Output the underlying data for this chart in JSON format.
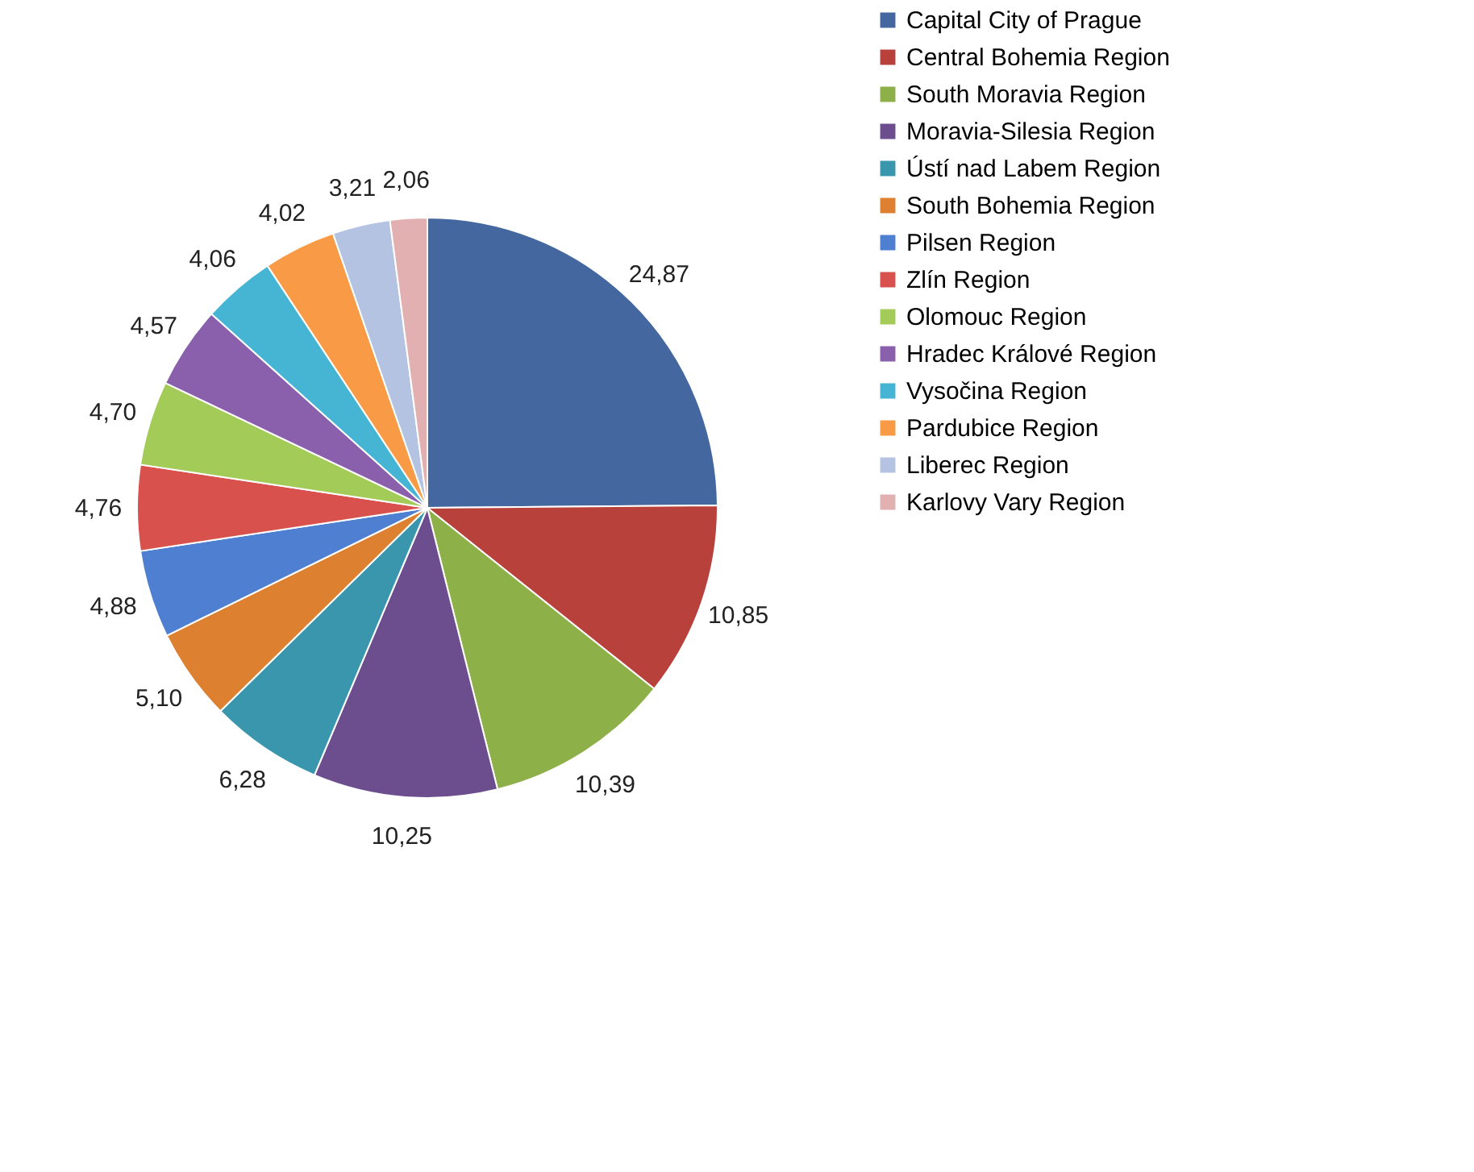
{
  "chart_data": {
    "type": "pie",
    "categories": [
      "Capital City of Prague",
      "Central Bohemia Region",
      "South Moravia Region",
      "Moravia-Silesia Region",
      "Ústí nad Labem Region",
      "South Bohemia Region",
      "Pilsen Region",
      "Zlín Region",
      "Olomouc Region",
      "Hradec Králové Region",
      "Vysočina Region",
      "Pardubice Region",
      "Liberec Region",
      "Karlovy Vary Region"
    ],
    "values": [
      24.87,
      10.85,
      10.39,
      10.25,
      6.28,
      5.1,
      4.88,
      4.76,
      4.7,
      4.57,
      4.06,
      4.02,
      3.21,
      2.06
    ],
    "value_labels": [
      "24,87",
      "10,85",
      "10,39",
      "10,25",
      "6,28",
      "5,10",
      "4,88",
      "4,76",
      "4,70",
      "4,57",
      "4,06",
      "4,02",
      "3,21",
      "2,06"
    ],
    "colors": [
      "#44679f",
      "#b8413c",
      "#8eb049",
      "#6c4e8e",
      "#3a96ad",
      "#dd8030",
      "#4f7fd0",
      "#d9514d",
      "#a3cb58",
      "#8a60ad",
      "#45b5d3",
      "#f99b46",
      "#b4c3e2",
      "#e3b0b2"
    ],
    "legend": "right"
  }
}
